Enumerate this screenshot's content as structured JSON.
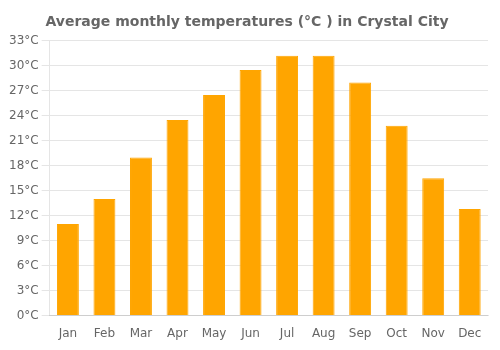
{
  "chart_data": {
    "type": "bar",
    "title": "Average monthly temperatures (°C ) in Crystal City",
    "categories": [
      "Jan",
      "Feb",
      "Mar",
      "Apr",
      "May",
      "Jun",
      "Jul",
      "Aug",
      "Sep",
      "Oct",
      "Nov",
      "Dec"
    ],
    "values": [
      11.0,
      14.0,
      19.0,
      23.5,
      26.5,
      29.5,
      31.2,
      31.2,
      28.0,
      22.8,
      16.5,
      12.8
    ],
    "color": "#FFA500",
    "ylim": [
      0,
      33
    ],
    "yticks": [
      {
        "value": 0,
        "label": "0°C"
      },
      {
        "value": 3,
        "label": "3°C"
      },
      {
        "value": 6,
        "label": "6°C"
      },
      {
        "value": 9,
        "label": "9°C"
      },
      {
        "value": 12,
        "label": "12°C"
      },
      {
        "value": 15,
        "label": "15°C"
      },
      {
        "value": 18,
        "label": "18°C"
      },
      {
        "value": 21,
        "label": "21°C"
      },
      {
        "value": 24,
        "label": "24°C"
      },
      {
        "value": 27,
        "label": "27°C"
      },
      {
        "value": 30,
        "label": "30°C"
      },
      {
        "value": 33,
        "label": "33°C"
      }
    ],
    "grid": true
  }
}
